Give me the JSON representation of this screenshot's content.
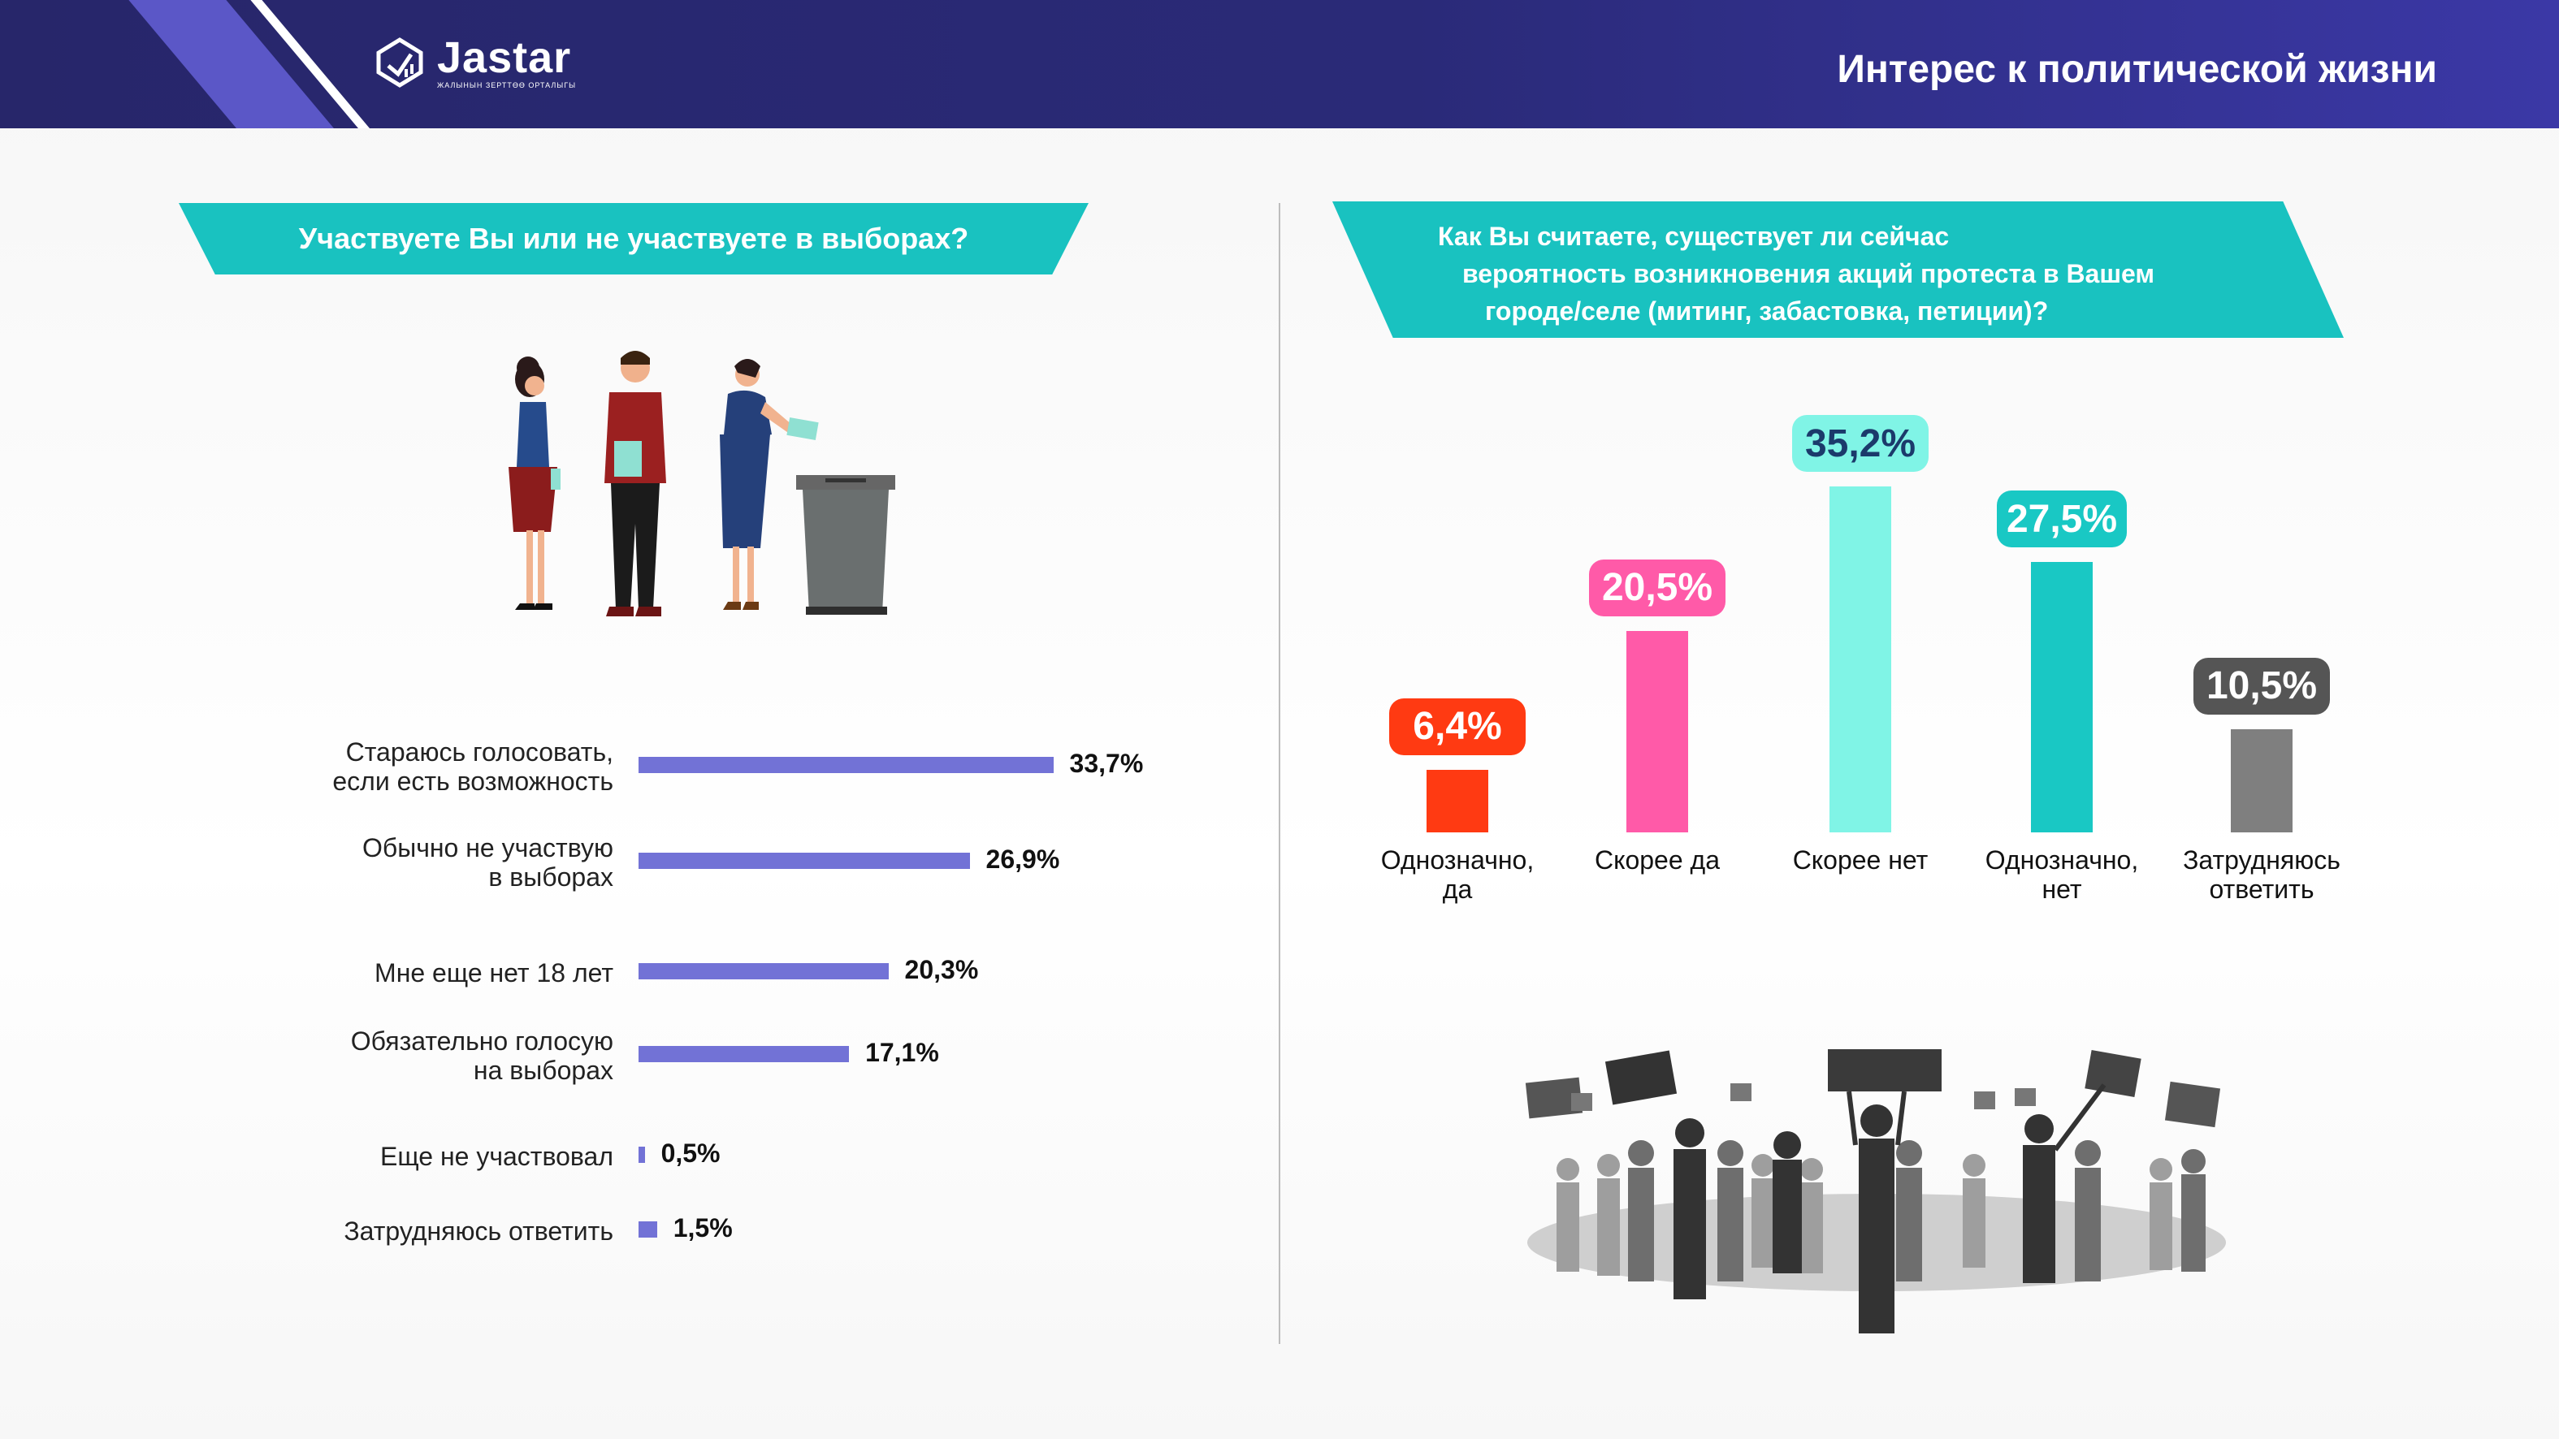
{
  "header": {
    "brand": "Jastar",
    "brand_tagline": "ЖАЛЫНЫН ЗЕРТТӨӨ ОРТАЛЫГЫ",
    "title": "Интерес к политической жизни",
    "colors": {
      "bar": "#27266a",
      "accent": "#5b57c7"
    }
  },
  "left_question": "Участвуете Вы или не участвуете в выборах?",
  "right_question_lines": [
    "Как Вы считаете, существует ли сейчас",
    "вероятность возникновения акций протеста в Вашем",
    "городе/селе (митинг, забастовка, петиции)?"
  ],
  "illustrations": [
    "voters-illustration",
    "protest-crowd-illustration"
  ],
  "chart_data": [
    {
      "type": "bar",
      "orientation": "horizontal",
      "title": "Участвуете Вы или не участвуете в выборах?",
      "color": "#7272d6",
      "categories": [
        [
          "Стараюсь голосовать,",
          "если есть возможность"
        ],
        [
          "Обычно не участвую",
          "в выборах"
        ],
        [
          "Мне еще нет 18 лет"
        ],
        [
          "Обязательно голосую",
          "на выборах"
        ],
        [
          "Еще не участвовал"
        ],
        [
          "Затрудняюсь ответить"
        ]
      ],
      "values": [
        33.7,
        26.9,
        20.3,
        17.1,
        0.5,
        1.5
      ],
      "value_labels": [
        "33,7%",
        "26,9%",
        "20,3%",
        "17,1%",
        "0,5%",
        "1,5%"
      ]
    },
    {
      "type": "bar",
      "orientation": "vertical",
      "title": "Как Вы считаете, существует ли сейчас вероятность возникновения акций протеста в Вашем городе/селе (митинг, забастовка, петиции)?",
      "categories": [
        [
          "Однозначно,",
          "да"
        ],
        [
          "Скорее да"
        ],
        [
          "Скорее нет"
        ],
        [
          "Однозначно,",
          "нет"
        ],
        [
          "Затрудняюсь",
          "ответить"
        ]
      ],
      "values": [
        6.4,
        20.5,
        35.2,
        27.5,
        10.5
      ],
      "value_labels": [
        "6,4%",
        "20,5%",
        "35,2%",
        "27,5%",
        "10,5%"
      ],
      "bar_colors": [
        "#ff3a12",
        "#ff5aa8",
        "#80f4e6",
        "#19c8c4",
        "#7f7f7f"
      ],
      "badge_colors": [
        "#ff3a12",
        "#ff5aa8",
        "#80f4e6",
        "#19c8c4",
        "#555555"
      ],
      "badge_text_colors": [
        "#ffffff",
        "#ffffff",
        "#1b3a6b",
        "#ffffff",
        "#ffffff"
      ]
    }
  ]
}
